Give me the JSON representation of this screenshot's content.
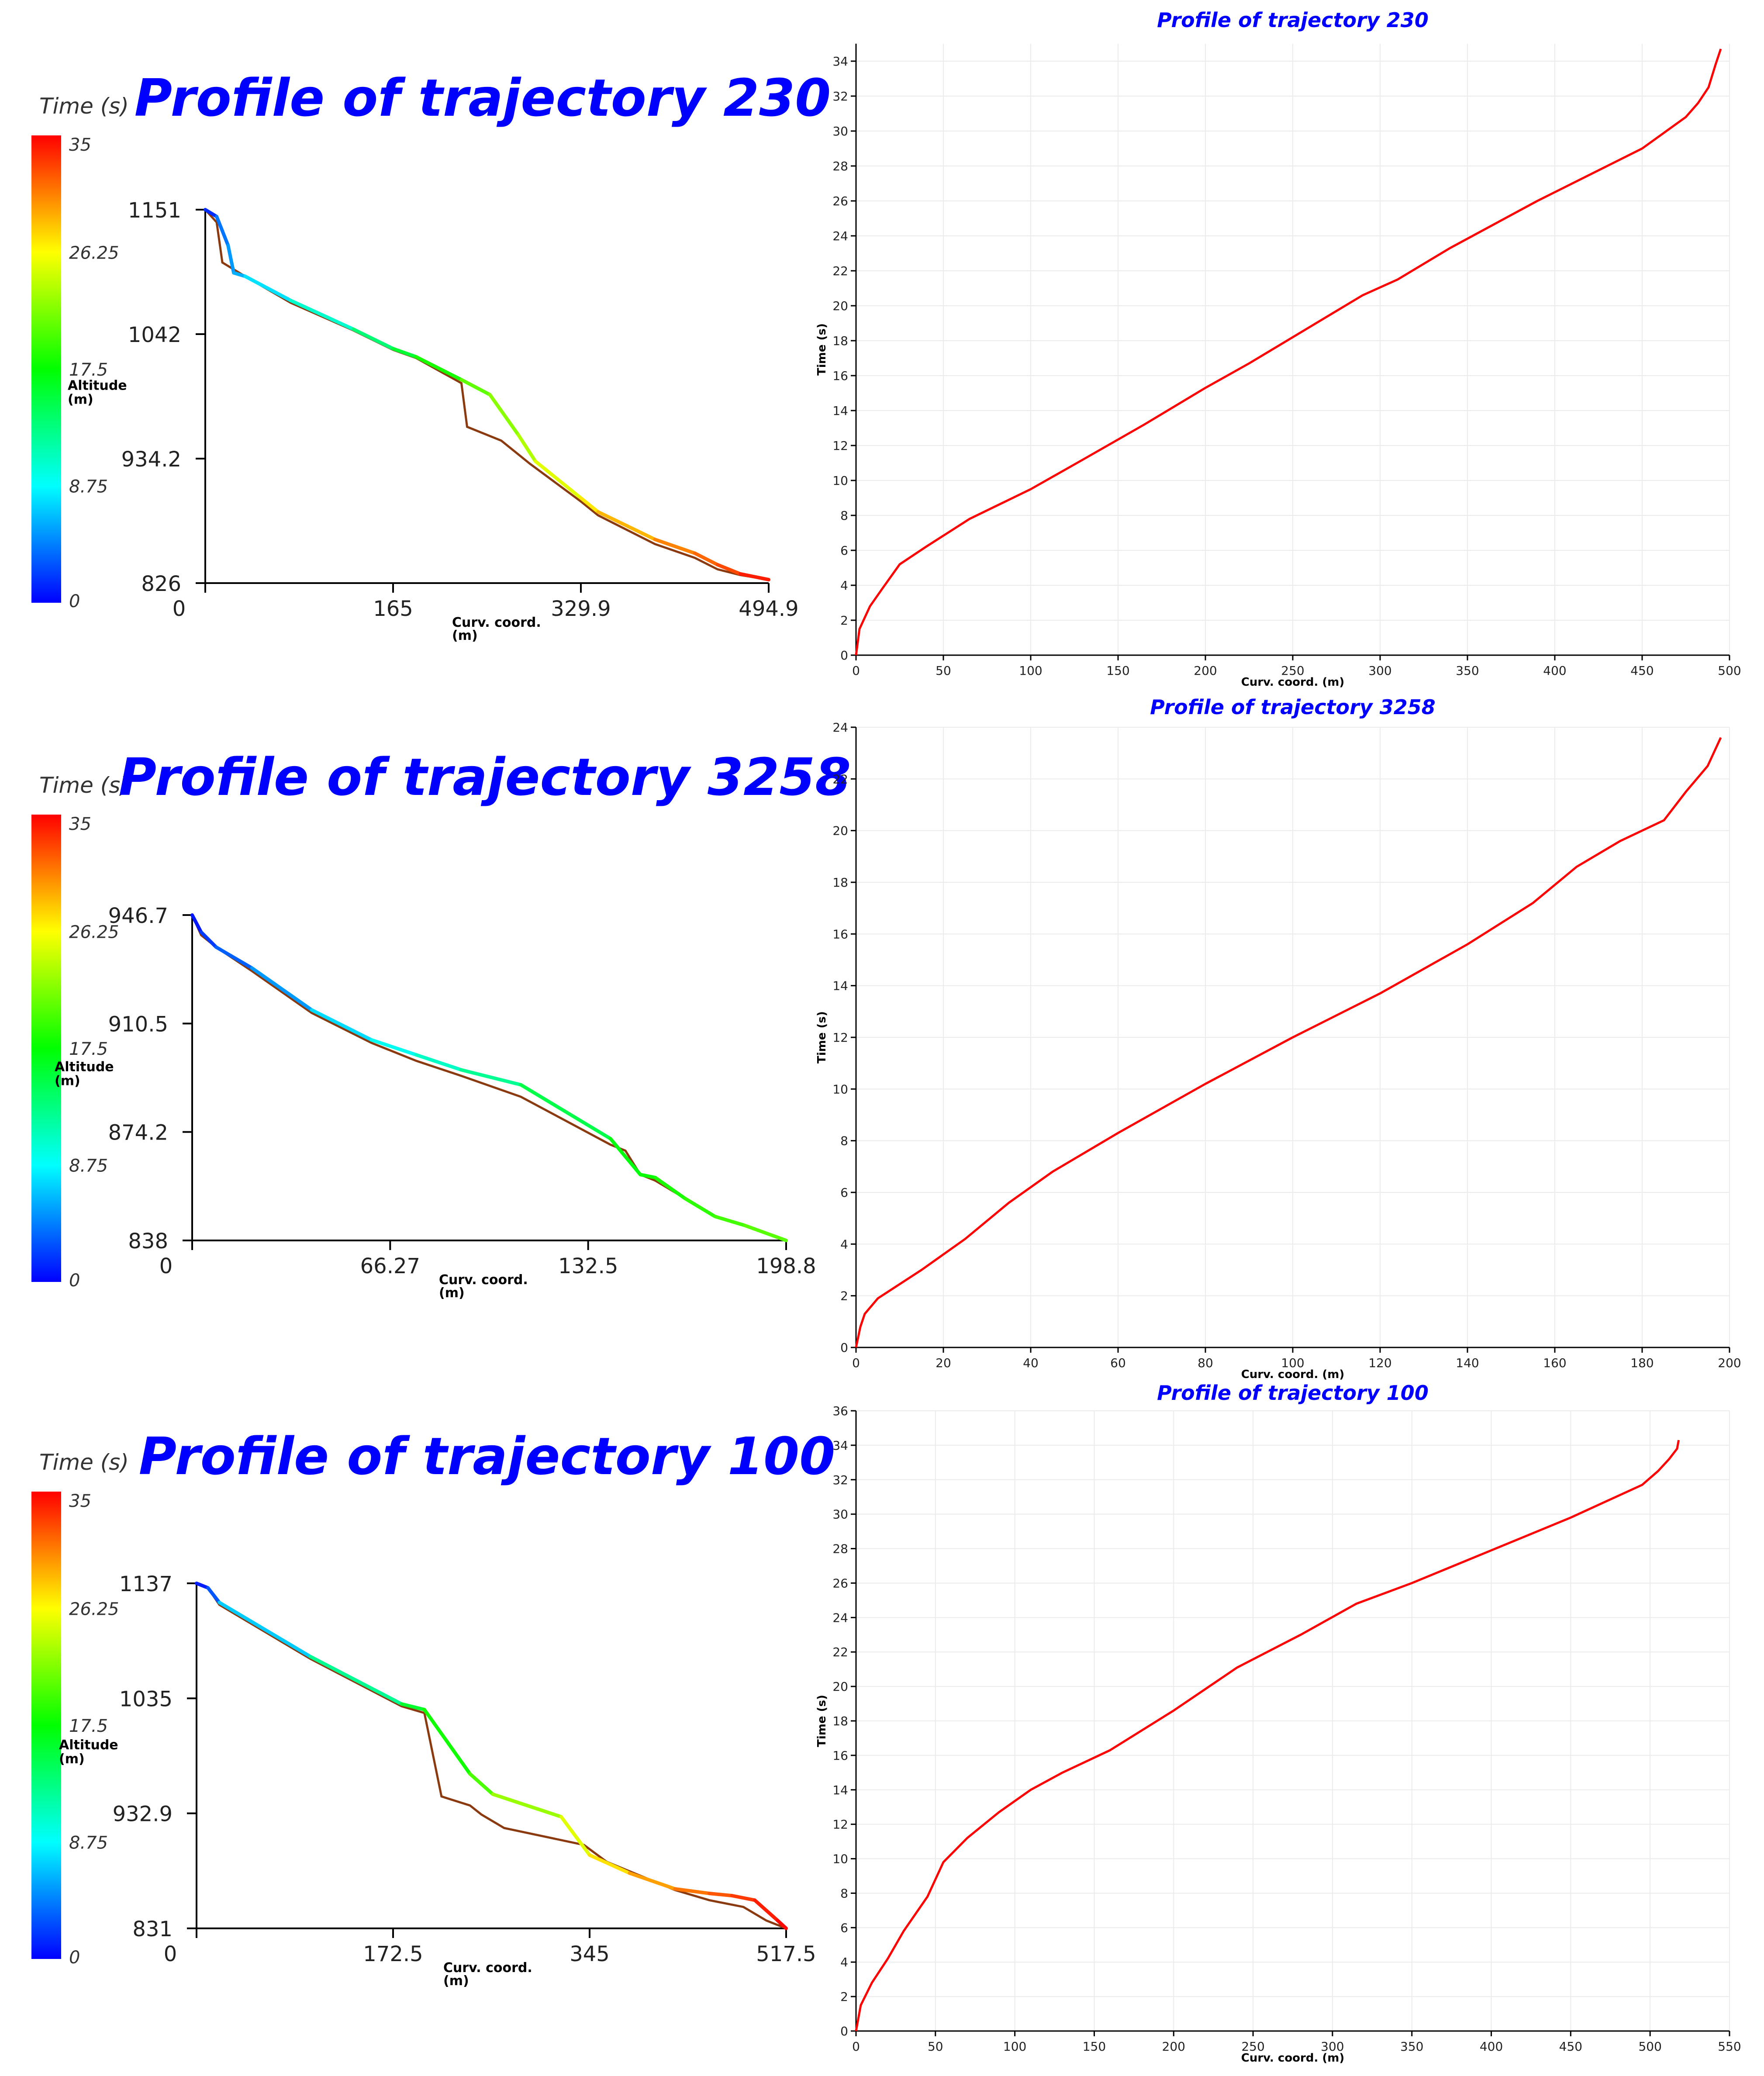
{
  "colors": {
    "title_blue": "#0000ff",
    "curve_red": "#ff0000",
    "terrain_brown": "#8b3a0f",
    "axis": "#000000",
    "grid": "#ebebeb",
    "colorbar_stops": [
      "#0000ff",
      "#00ffff",
      "#00ff00",
      "#ffff00",
      "#ff0000"
    ]
  },
  "colorbar": {
    "title": "Time (s)",
    "tick_labels": [
      "35",
      "26.25",
      "17.5",
      "8.75",
      "0"
    ],
    "range": [
      0,
      35
    ]
  },
  "chart_data": [
    {
      "type": "line",
      "panel": "left",
      "title": "Profile of trajectory 230",
      "ylabel": "Altitude\n(m)",
      "xlabel": "Curv. coord.\n(m)",
      "x_tick_labels": [
        "0",
        "165",
        "329.9",
        "494.9"
      ],
      "y_tick_labels": [
        "1151",
        "1042",
        "934.2",
        "826"
      ],
      "xlim": [
        0,
        494.9
      ],
      "ylim": [
        826,
        1151
      ],
      "series": [
        {
          "name": "terrain",
          "x": [
            0,
            10,
            15,
            35,
            75,
            130,
            165,
            185,
            225,
            230,
            260,
            275,
            285,
            330,
            345,
            365,
            395,
            430,
            450,
            470,
            494.9
          ],
          "y": [
            1151,
            1140,
            1105,
            1093,
            1070,
            1046,
            1029,
            1022,
            1000,
            962,
            950,
            938,
            930,
            897,
            885,
            875,
            860,
            848,
            838,
            833,
            829
          ]
        },
        {
          "name": "trajectory",
          "x": [
            0,
            10,
            20,
            25,
            35,
            75,
            130,
            165,
            185,
            225,
            250,
            275,
            290,
            330,
            345,
            395,
            430,
            450,
            470,
            494.9
          ],
          "y": [
            1151,
            1145,
            1120,
            1096,
            1093,
            1072,
            1047,
            1030,
            1023,
            1003,
            990,
            955,
            932,
            900,
            888,
            864,
            852,
            842,
            834,
            829
          ],
          "t": [
            0,
            3,
            5,
            5.5,
            6.5,
            9,
            12,
            15,
            16.5,
            20,
            21.5,
            23,
            24,
            26.5,
            27.5,
            30,
            31,
            32,
            33,
            35
          ]
        }
      ]
    },
    {
      "type": "line",
      "panel": "right",
      "title": "Profile of trajectory 230",
      "xlabel": "Curv. coord. (m)",
      "ylabel": "Time (s)",
      "xlim": [
        0,
        500
      ],
      "ylim": [
        0,
        35
      ],
      "x_ticks": [
        0,
        50,
        100,
        150,
        200,
        250,
        300,
        350,
        400,
        450,
        500
      ],
      "y_ticks": [
        0,
        2,
        4,
        6,
        8,
        10,
        12,
        14,
        16,
        18,
        20,
        22,
        24,
        26,
        28,
        30,
        32,
        34
      ],
      "series": [
        {
          "name": "time",
          "x": [
            0,
            2,
            8,
            15,
            25,
            40,
            65,
            100,
            130,
            165,
            200,
            225,
            260,
            290,
            310,
            340,
            390,
            450,
            475,
            482,
            488,
            492,
            495
          ],
          "y": [
            0,
            1.5,
            2.8,
            3.8,
            5.2,
            6.2,
            7.8,
            9.5,
            11.2,
            13.2,
            15.3,
            16.7,
            18.8,
            20.6,
            21.5,
            23.3,
            26,
            29,
            30.8,
            31.6,
            32.5,
            33.8,
            34.7
          ]
        }
      ]
    },
    {
      "type": "line",
      "panel": "left",
      "title": "Profile of trajectory 3258",
      "ylabel": "Altitude\n(m)",
      "xlabel": "Curv. coord.\n(m)",
      "x_tick_labels": [
        "0",
        "66.27",
        "132.5",
        "198.8"
      ],
      "y_tick_labels": [
        "946.7",
        "910.5",
        "874.2",
        "838"
      ],
      "xlim": [
        0,
        198.8
      ],
      "ylim": [
        838,
        946.7
      ],
      "series": [
        {
          "name": "terrain",
          "x": [
            0,
            3,
            8,
            20,
            40,
            60,
            75,
            90,
            110,
            140,
            145,
            150,
            155,
            165,
            175,
            185,
            198.8
          ],
          "y": [
            946.7,
            940,
            936,
            928,
            914,
            904,
            898,
            893,
            886,
            870,
            868,
            860,
            858,
            852,
            846,
            843,
            838
          ]
        },
        {
          "name": "trajectory",
          "x": [
            0,
            3,
            8,
            20,
            40,
            60,
            75,
            90,
            110,
            140,
            150,
            155,
            165,
            175,
            185,
            198.8
          ],
          "y": [
            946.7,
            941,
            936,
            929,
            915,
            905,
            900,
            895,
            890,
            872,
            860,
            859,
            852,
            846,
            843,
            838
          ],
          "t": [
            0,
            1.5,
            2.5,
            4,
            6.5,
            8.5,
            10,
            11.5,
            13.5,
            16.5,
            17.5,
            18,
            18.5,
            19.5,
            20,
            21
          ]
        }
      ]
    },
    {
      "type": "line",
      "panel": "right",
      "title": "Profile of trajectory 3258",
      "xlabel": "Curv. coord. (m)",
      "ylabel": "Time (s)",
      "xlim": [
        0,
        200
      ],
      "ylim": [
        0,
        24
      ],
      "x_ticks": [
        0,
        20,
        40,
        60,
        80,
        100,
        120,
        140,
        160,
        180,
        200
      ],
      "y_ticks": [
        0,
        2,
        4,
        6,
        8,
        10,
        12,
        14,
        16,
        18,
        20,
        22,
        24
      ],
      "series": [
        {
          "name": "time",
          "x": [
            0,
            1,
            2,
            5,
            15,
            25,
            35,
            45,
            60,
            80,
            100,
            120,
            140,
            155,
            165,
            175,
            185,
            190,
            195,
            198
          ],
          "y": [
            0,
            0.8,
            1.3,
            1.9,
            3,
            4.2,
            5.6,
            6.8,
            8.3,
            10.2,
            12,
            13.7,
            15.6,
            17.2,
            18.6,
            19.6,
            20.4,
            21.5,
            22.5,
            23.6
          ]
        }
      ]
    },
    {
      "type": "line",
      "panel": "left",
      "title": "Profile of trajectory 100",
      "ylabel": "Altitude\n(m)",
      "xlabel": "Curv. coord.\n(m)",
      "x_tick_labels": [
        "0",
        "172.5",
        "345",
        "517.5"
      ],
      "y_tick_labels": [
        "1137",
        "1035",
        "932.9",
        "831"
      ],
      "xlim": [
        0,
        517.5
      ],
      "ylim": [
        831,
        1137
      ],
      "series": [
        {
          "name": "terrain",
          "x": [
            0,
            10,
            20,
            100,
            180,
            200,
            215,
            240,
            250,
            270,
            340,
            360,
            420,
            450,
            480,
            500,
            517.5
          ],
          "y": [
            1137,
            1133,
            1118,
            1070,
            1028,
            1022,
            948,
            940,
            932,
            920,
            905,
            890,
            865,
            856,
            850,
            838,
            831
          ]
        },
        {
          "name": "trajectory",
          "x": [
            0,
            10,
            20,
            100,
            180,
            200,
            240,
            260,
            320,
            345,
            380,
            420,
            450,
            470,
            490,
            510,
            517.5
          ],
          "y": [
            1137,
            1133,
            1120,
            1072,
            1030,
            1025,
            968,
            950,
            930,
            896,
            880,
            866,
            862,
            860,
            856,
            838,
            831
          ],
          "t": [
            0,
            2,
            4,
            10,
            15,
            17,
            19,
            21,
            24.5,
            26,
            28.5,
            30.5,
            31.5,
            32.5,
            33.5,
            34.5,
            35
          ]
        }
      ]
    },
    {
      "type": "line",
      "panel": "right",
      "title": "Profile of trajectory 100",
      "xlabel": "Curv. coord. (m)",
      "ylabel": "Time (s)",
      "xlim": [
        0,
        550
      ],
      "ylim": [
        0,
        36
      ],
      "x_ticks": [
        0,
        50,
        100,
        150,
        200,
        250,
        300,
        350,
        400,
        450,
        500,
        550
      ],
      "y_ticks": [
        0,
        2,
        4,
        6,
        8,
        10,
        12,
        14,
        16,
        18,
        20,
        22,
        24,
        26,
        28,
        30,
        32,
        34,
        36
      ],
      "series": [
        {
          "name": "time",
          "x": [
            0,
            3,
            10,
            20,
            30,
            45,
            55,
            70,
            90,
            110,
            130,
            160,
            200,
            240,
            280,
            315,
            350,
            400,
            450,
            495,
            505,
            512,
            517,
            518
          ],
          "y": [
            0,
            1.5,
            2.8,
            4.2,
            5.8,
            7.8,
            9.8,
            11.2,
            12.7,
            14,
            15,
            16.3,
            18.6,
            21.1,
            23,
            24.8,
            26,
            27.9,
            29.8,
            31.7,
            32.5,
            33.2,
            33.8,
            34.3
          ]
        }
      ]
    }
  ]
}
